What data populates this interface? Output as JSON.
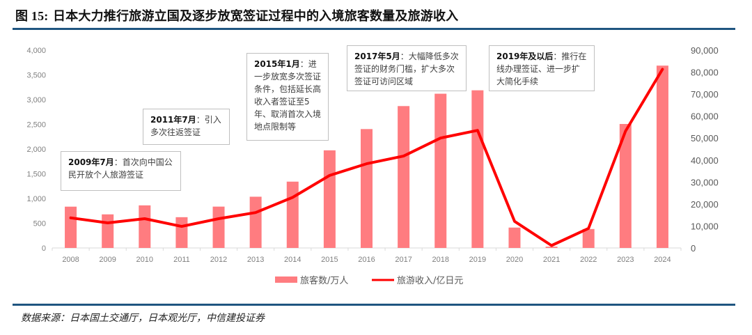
{
  "figure": {
    "label": "图 15:",
    "title": "日本大力推行旅游立国及逐步放宽签证过程中的入境旅客数量及旅游收入",
    "source": "数据来源：日本国土交通厅，日本观光厅，中信建投证券"
  },
  "annotations": [
    {
      "date": "2009年7月",
      "sep": "：",
      "text": "首次向中国公民开放个人旅游签证"
    },
    {
      "date": "2011年7月",
      "sep": "：",
      "text": "引入多次往返签证"
    },
    {
      "date": "2015年1月",
      "sep": "：",
      "text": "进一步放宽多次签证条件，包括延长高收入者签证至5年、取消首次入境地点限制等"
    },
    {
      "date": "2017年5月",
      "sep": "：",
      "text": "大幅降低多次签证的财务门槛，扩大多次签证可访问区域"
    },
    {
      "date": "2019年及以后",
      "sep": "：",
      "text": "推行在线办理签证、进一步扩大简化手续"
    }
  ],
  "chart_data": {
    "type": "bar+line",
    "title": "日本大力推行旅游立国及逐步放宽签证过程中的入境旅客数量及旅游收入",
    "categories": [
      "2008",
      "2009",
      "2010",
      "2011",
      "2012",
      "2013",
      "2014",
      "2015",
      "2016",
      "2017",
      "2018",
      "2019",
      "2020",
      "2021",
      "2022",
      "2023",
      "2024"
    ],
    "series": [
      {
        "name": "旅客数/万人",
        "type": "bar",
        "axis": "left",
        "color": "#ff7c80",
        "values": [
          835,
          679,
          861,
          622,
          836,
          1036,
          1341,
          1974,
          2404,
          2869,
          3119,
          3188,
          412,
          25,
          383,
          2507,
          3687
        ]
      },
      {
        "name": "旅游收入/亿日元",
        "type": "line",
        "axis": "right",
        "color": "#ff0000",
        "values": [
          13700,
          11400,
          13300,
          9800,
          13300,
          16100,
          23000,
          33000,
          38300,
          41800,
          50000,
          53500,
          12100,
          1100,
          8900,
          53100,
          81300
        ]
      }
    ],
    "left_axis": {
      "ylim": [
        0,
        4000
      ],
      "ticks": [
        "0",
        "500",
        "1,000",
        "1,500",
        "2,000",
        "2,500",
        "3,000",
        "3,500",
        "4,000"
      ]
    },
    "right_axis": {
      "ylim": [
        0,
        90000
      ],
      "ticks": [
        "0",
        "10,000",
        "20,000",
        "30,000",
        "40,000",
        "50,000",
        "60,000",
        "70,000",
        "80,000",
        "90,000"
      ]
    },
    "legend": {
      "position": "bottom",
      "entries": [
        "旅客数/万人",
        "旅游收入/亿日元"
      ]
    },
    "grid": false
  }
}
